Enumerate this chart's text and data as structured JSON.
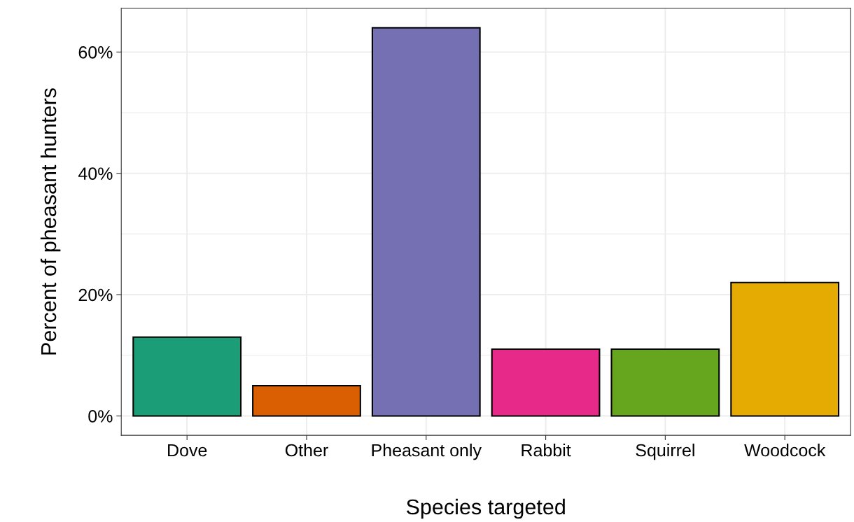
{
  "chart_data": {
    "type": "bar",
    "xlabel": "Species targeted",
    "ylabel": "Percent of pheasant hunters",
    "categories": [
      "Dove",
      "Other",
      "Pheasant only",
      "Rabbit",
      "Squirrel",
      "Woodcock"
    ],
    "values": [
      13,
      5,
      64,
      11,
      11,
      22
    ],
    "colors": [
      "#1b9e77",
      "#d95f02",
      "#7570b3",
      "#e7298a",
      "#66a61e",
      "#e6ab02"
    ],
    "ylim": [
      -3.2,
      67.2
    ],
    "yticks": [
      {
        "value": 0,
        "label": "0%"
      },
      {
        "value": 20,
        "label": "20%"
      },
      {
        "value": 40,
        "label": "40%"
      },
      {
        "value": 60,
        "label": "60%"
      }
    ],
    "grid": true
  }
}
